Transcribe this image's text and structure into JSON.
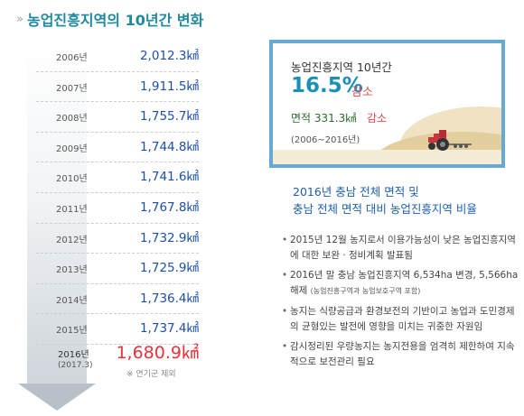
{
  "title": {
    "chevron": "»",
    "text": "농업진흥지역의 10년간 변화"
  },
  "timeline": {
    "rows": [
      {
        "year": "2006년",
        "area": "2,012.3㎢"
      },
      {
        "year": "2007년",
        "area": "1,911.5㎢"
      },
      {
        "year": "2008년",
        "area": "1,755.7㎢"
      },
      {
        "year": "2009년",
        "area": "1,744.8㎢"
      },
      {
        "year": "2010년",
        "area": "1,741.6㎢"
      },
      {
        "year": "2011년",
        "area": "1,767.8㎢"
      },
      {
        "year": "2012년",
        "area": "1,732.9㎢"
      },
      {
        "year": "2013년",
        "area": "1,725.9㎢"
      },
      {
        "year": "2014년",
        "area": "1,736.4㎢"
      },
      {
        "year": "2015년",
        "area": "1,737.4㎢"
      }
    ],
    "last": {
      "year": "2016년",
      "sub": "(2017.3)",
      "area": "1,680.9㎢",
      "note": "※ 연기군 제외"
    }
  },
  "summary": {
    "title": "농업진흥지역 10년간",
    "percent": "16.5%",
    "decrease": "감소",
    "area": "면적 331.3㎢",
    "area_decrease": "감소",
    "period": "(2006~2016년)"
  },
  "heading": {
    "line1": "2016년 충남 전체 면적 및",
    "line2": "충남 전체 면적 대비 농업진흥지역 비율"
  },
  "bullets": {
    "b1": "2015년 12월 농지로서 이용가능성이 낮은 농업진흥지역에 대한 보완 · 정비계획 발표됨",
    "b2": "2016년 말 충남 농업진흥지역 6,534ha 변경, 5,566ha 해제",
    "b2_small": "(농업진흥구역과 농업보호구역 포함)",
    "b3": "농지는 식량공급과 환경보전의 기반이고 농업과 도민경제의 균형있는 발전에 영향을 미치는 귀중한 자원임",
    "b4": "감시정리된 우량농지는 농지전용을 엄격히 제한하여 지속적으로 보전관리 필요"
  }
}
